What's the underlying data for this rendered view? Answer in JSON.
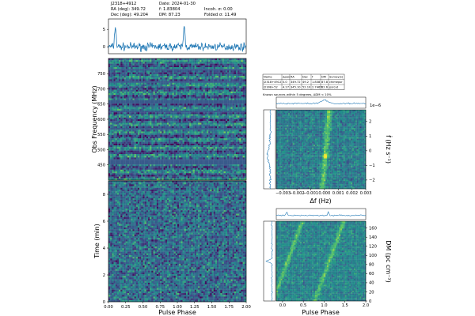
{
  "header": {
    "source_name": "J2318+4912",
    "ra": "RA (deg): 349.72",
    "dec": "Dec (deg): 49.204",
    "date": "Date: 2024-01-30",
    "f": "f: 1.83804",
    "dm": "DM: 87.23",
    "incoh": "Incoh. σ: 0.00",
    "folded": "Folded σ: 11.49"
  },
  "known_sources": {
    "columns": [
      "Name",
      "Δpos",
      "RA",
      "Dec",
      "f",
      "DM",
      "Survey(s)"
    ],
    "rows": [
      [
        "J2318+4912",
        "0.0",
        "349.72",
        "49.2",
        "1.838",
        "87.8",
        "chimepsr"
      ],
      [
        "J2308+52",
        "4.27",
        "345.10",
        "52.10",
        "2.7467",
        "82.6",
        "psrcat"
      ]
    ],
    "note": "Known sources within 5 degrees, ΔDM < 10%"
  },
  "colors": {
    "line": "#1f77b4",
    "cmap_low": "#440154",
    "cmap_mid": "#21918c",
    "cmap_high": "#fde725"
  },
  "chart_data": [
    {
      "type": "line",
      "panel": "pulse-profile",
      "xlim": [
        0,
        2
      ],
      "ylim": [
        -2,
        8
      ],
      "yticks": [
        0,
        5
      ],
      "description_values": {
        "peak_phases": [
          0.1,
          1.1
        ],
        "baseline": 0
      }
    },
    {
      "type": "heatmap",
      "panel": "frequency-vs-phase",
      "ylabel": "Obs Frequency (MHz)",
      "xlim": [
        0,
        2
      ],
      "ylim": [
        400,
        800
      ],
      "yticks": [
        450,
        500,
        550,
        600,
        650,
        700,
        750
      ],
      "masked_bands_mhz": [
        [
          762,
          768
        ],
        [
          724,
          729
        ],
        [
          655,
          668
        ],
        [
          628,
          633
        ],
        [
          570,
          574
        ],
        [
          456,
          470
        ]
      ]
    },
    {
      "type": "heatmap",
      "panel": "time-vs-phase",
      "xlabel": "Pulse Phase",
      "ylabel": "Time (min)",
      "xlim": [
        0,
        2
      ],
      "ylim": [
        0,
        9
      ],
      "xticks": [
        "0.00",
        "0.25",
        "0.50",
        "0.75",
        "1.00",
        "1.25",
        "1.50",
        "1.75",
        "2.00"
      ],
      "yticks": [
        0,
        2,
        4,
        6,
        8
      ]
    },
    {
      "type": "heatmap",
      "panel": "fdot-vs-df",
      "xlabel": "Δf (Hz)",
      "ylabel": "ḟ (Hz s⁻¹)",
      "xlim": [
        -0.0035,
        0.003
      ],
      "ylim": [
        -2.6,
        2.8
      ],
      "xticks": [
        "−0.003",
        "−0.002",
        "−0.001",
        "0.000",
        "0.001",
        "0.002",
        "0.003"
      ],
      "yticks": [
        -2,
        -1,
        0,
        1,
        2
      ],
      "yexponent": "1e−6",
      "peak": {
        "df": 0.0,
        "fdot": -0.3
      }
    },
    {
      "type": "heatmap",
      "panel": "dm-vs-phase",
      "xlabel": "Pulse Phase",
      "ylabel": "DM (pc cm⁻³)",
      "xlim": [
        -0.15,
        2.0
      ],
      "ylim": [
        0,
        175
      ],
      "xticks": [
        "0.0",
        "0.5",
        "1.0",
        "1.5",
        "2.0"
      ],
      "yticks": [
        0,
        20,
        40,
        60,
        80,
        100,
        120,
        140,
        160
      ],
      "peak_dm": 87.23
    }
  ]
}
